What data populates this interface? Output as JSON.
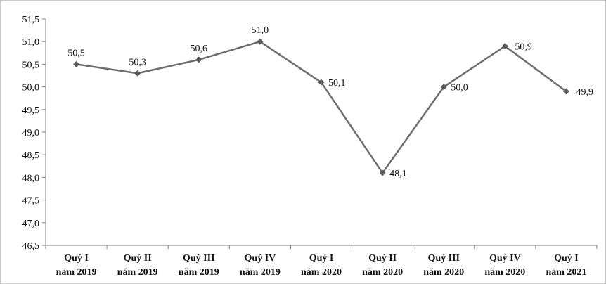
{
  "chart_data": {
    "type": "line",
    "title": "",
    "xlabel": "",
    "ylabel": "",
    "categories": [
      [
        "Quý I",
        "năm 2019"
      ],
      [
        "Quý II",
        "năm 2019"
      ],
      [
        "Quý III",
        "năm 2019"
      ],
      [
        "Quý IV",
        "năm 2019"
      ],
      [
        "Quý I",
        "năm 2020"
      ],
      [
        "Quý II",
        "năm 2020"
      ],
      [
        "Quý III",
        "năm 2020"
      ],
      [
        "Quý IV",
        "năm 2020"
      ],
      [
        "Quý I",
        "năm 2021"
      ]
    ],
    "values": [
      50.5,
      50.3,
      50.6,
      51.0,
      50.1,
      48.1,
      50.0,
      50.9,
      49.9
    ],
    "value_labels": [
      "50,5",
      "50,3",
      "50,6",
      "51,0",
      "50,1",
      "48,1",
      "50,0",
      "50,9",
      "49,9"
    ],
    "ylim": [
      46.5,
      51.5
    ],
    "yticks": [
      46.5,
      47.0,
      47.5,
      48.0,
      48.5,
      49.0,
      49.5,
      50.0,
      50.5,
      51.0,
      51.5
    ],
    "ytick_labels": [
      "46,5",
      "47,0",
      "47,5",
      "48,0",
      "48,5",
      "49,0",
      "49,5",
      "50,0",
      "50,5",
      "51,0",
      "51,5"
    ],
    "grid": false,
    "legend": "none",
    "marker": "diamond",
    "line_color": "#6d6d6d",
    "marker_color": "#5a5a5a",
    "axis_color": "#808080"
  }
}
